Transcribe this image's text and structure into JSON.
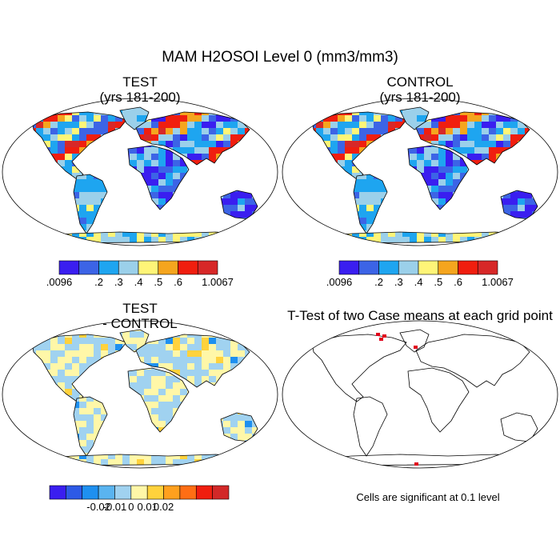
{
  "figure_title": "MAM H2OSOI Level 0 (mm3/mm3)",
  "panels": {
    "test": {
      "title": "TEST",
      "subtitle": "(yrs 181-200)"
    },
    "control": {
      "title": "CONTROL",
      "subtitle": "(yrs 181-200)"
    },
    "diff": {
      "title": "TEST",
      "subtitle": "- CONTROL"
    },
    "ttest": {
      "title": "T-Test of two Case means at each grid point",
      "note": "Cells are significant at 0.1 level"
    }
  },
  "colorbars": {
    "absolute": {
      "colors": [
        "#3a1ef0",
        "#3c64e6",
        "#1ea5f0",
        "#9bd0ea",
        "#fff578",
        "#f5a51e",
        "#f01e0f",
        "#d72828"
      ],
      "tick_labels": [
        ".0096",
        ".2",
        ".3",
        ".4",
        ".5",
        ".6",
        "1.0067"
      ]
    },
    "difference": {
      "colors": [
        "#3a1ef0",
        "#2d5ae6",
        "#1e90f0",
        "#5ab4f0",
        "#a0d2f0",
        "#fff7a8",
        "#ffd23c",
        "#ffa01e",
        "#ff6e14",
        "#f01e0f",
        "#d22828"
      ],
      "tick_labels": [
        "-0.02",
        "-0.01",
        "0",
        "0.01",
        "0.02"
      ]
    }
  },
  "colors": {
    "coast": "#000000",
    "significant": "#e0001a",
    "background": "#ffffff"
  }
}
